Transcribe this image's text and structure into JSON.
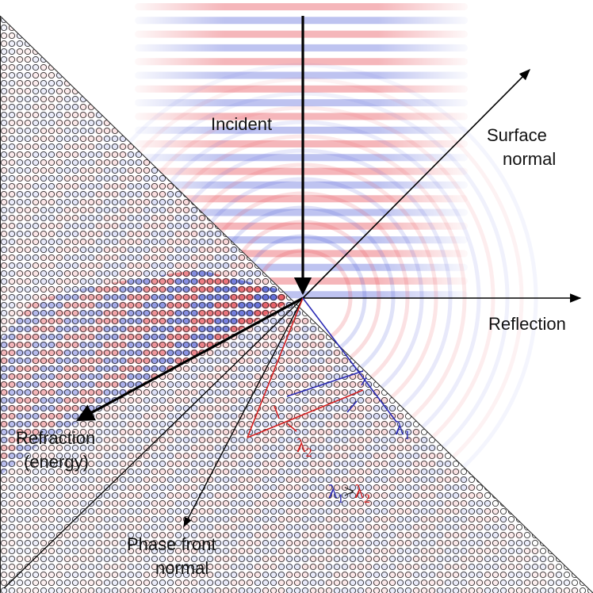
{
  "diagram": {
    "labels": {
      "incident": "Incident",
      "surface_normal_1": "Surface",
      "surface_normal_2": "normal",
      "reflection": "Reflection",
      "refraction_1": "Refraction",
      "refraction_2": "(energy)",
      "phase_front_1": "Phase front",
      "phase_front_2": "normal"
    },
    "wavelengths": {
      "symbol": "λ",
      "lambda1_sub": "1",
      "lambda2_sub": "2",
      "relation": ">"
    },
    "colors": {
      "wave_red": "#e8505a",
      "wave_blue": "#5460d8",
      "lambda1": "#2a2ab4",
      "lambda2": "#d42020",
      "lattice": "#333333",
      "arrows": "#000000"
    }
  }
}
